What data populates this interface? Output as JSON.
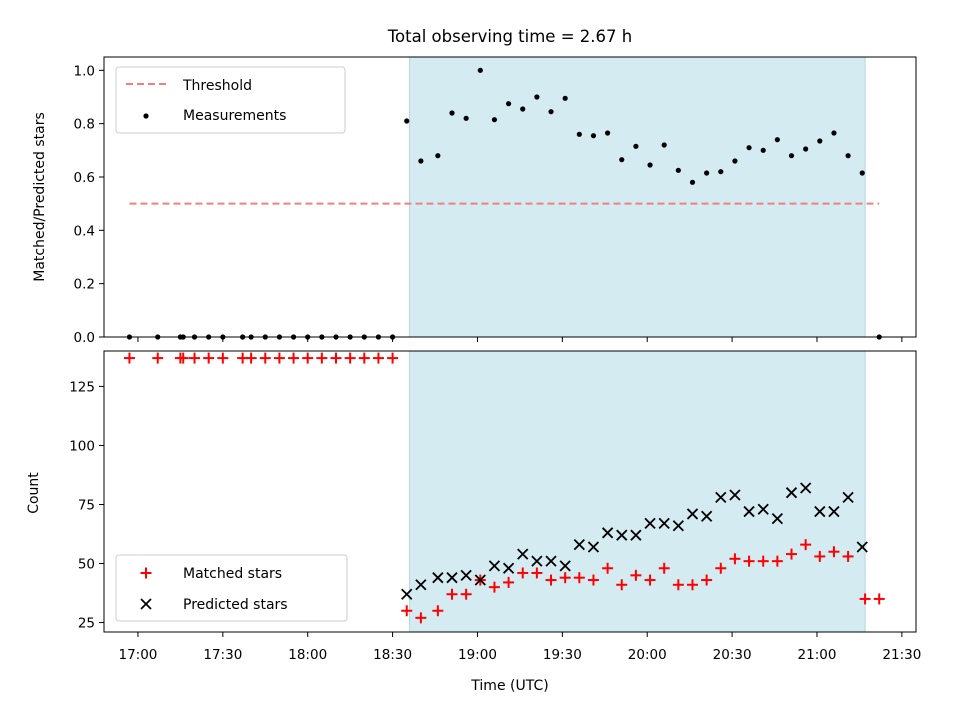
{
  "chart_data": [
    {
      "type": "scatter",
      "title": "Total observing time = 2.67 h",
      "xlabel": "",
      "ylabel": "Matched/Predicted stars",
      "xlim": [
        "16:48",
        "21:35"
      ],
      "ylim": [
        0,
        1.05
      ],
      "y_ticks": [
        "0.0",
        "0.2",
        "0.4",
        "0.6",
        "0.8",
        "1.0"
      ],
      "grid": false,
      "legend_position": "top-left",
      "shaded_interval": {
        "start": "18:36",
        "end": "21:17",
        "color": "#d4ebf2"
      },
      "threshold": {
        "name": "Threshold",
        "value": 0.5,
        "x_start": "16:57",
        "x_end": "21:22",
        "color": "#f08080"
      },
      "series": [
        {
          "name": "Measurements",
          "color": "#000000",
          "marker": "dot",
          "points": [
            [
              "16:57",
              0
            ],
            [
              "17:07",
              0
            ],
            [
              "17:15",
              0
            ],
            [
              "17:16",
              0
            ],
            [
              "17:20",
              0
            ],
            [
              "17:25",
              0
            ],
            [
              "17:30",
              0
            ],
            [
              "17:37",
              0
            ],
            [
              "17:40",
              0
            ],
            [
              "17:45",
              0
            ],
            [
              "17:50",
              0
            ],
            [
              "17:55",
              0
            ],
            [
              "18:00",
              0
            ],
            [
              "18:05",
              0
            ],
            [
              "18:10",
              0
            ],
            [
              "18:15",
              0
            ],
            [
              "18:20",
              0
            ],
            [
              "18:25",
              0
            ],
            [
              "18:30",
              0
            ],
            [
              "18:35",
              0.81
            ],
            [
              "18:40",
              0.66
            ],
            [
              "18:46",
              0.68
            ],
            [
              "18:51",
              0.84
            ],
            [
              "18:56",
              0.82
            ],
            [
              "19:01",
              1.0
            ],
            [
              "19:06",
              0.815
            ],
            [
              "19:11",
              0.875
            ],
            [
              "19:16",
              0.855
            ],
            [
              "19:21",
              0.9
            ],
            [
              "19:26",
              0.845
            ],
            [
              "19:31",
              0.895
            ],
            [
              "19:36",
              0.76
            ],
            [
              "19:41",
              0.755
            ],
            [
              "19:46",
              0.765
            ],
            [
              "19:51",
              0.665
            ],
            [
              "19:56",
              0.715
            ],
            [
              "20:01",
              0.645
            ],
            [
              "20:06",
              0.72
            ],
            [
              "20:11",
              0.625
            ],
            [
              "20:16",
              0.58
            ],
            [
              "20:21",
              0.615
            ],
            [
              "20:26",
              0.62
            ],
            [
              "20:31",
              0.66
            ],
            [
              "20:36",
              0.71
            ],
            [
              "20:41",
              0.7
            ],
            [
              "20:46",
              0.74
            ],
            [
              "20:51",
              0.68
            ],
            [
              "20:56",
              0.705
            ],
            [
              "21:01",
              0.735
            ],
            [
              "21:06",
              0.765
            ],
            [
              "21:11",
              0.68
            ],
            [
              "21:16",
              0.615
            ],
            [
              "21:22",
              0
            ]
          ]
        }
      ]
    },
    {
      "type": "scatter",
      "title": "",
      "xlabel": "Time (UTC)",
      "ylabel": "Count",
      "x_ticks": [
        "17:00",
        "17:30",
        "18:00",
        "18:30",
        "19:00",
        "19:30",
        "20:00",
        "20:30",
        "21:00",
        "21:30"
      ],
      "xlim": [
        "16:48",
        "21:35"
      ],
      "ylim": [
        21,
        140
      ],
      "y_ticks": [
        "25",
        "50",
        "75",
        "100",
        "125"
      ],
      "grid": false,
      "legend_position": "bottom-left",
      "shaded_interval": {
        "start": "18:36",
        "end": "21:17",
        "color": "#d4ebf2"
      },
      "series": [
        {
          "name": "Matched stars",
          "color": "#ff0000",
          "marker": "plus",
          "points": [
            [
              "16:57",
              137
            ],
            [
              "17:07",
              137
            ],
            [
              "17:15",
              137
            ],
            [
              "17:16",
              137
            ],
            [
              "17:20",
              137
            ],
            [
              "17:25",
              137
            ],
            [
              "17:30",
              137
            ],
            [
              "17:37",
              137
            ],
            [
              "17:40",
              137
            ],
            [
              "17:45",
              137
            ],
            [
              "17:50",
              137
            ],
            [
              "17:55",
              137
            ],
            [
              "18:00",
              137
            ],
            [
              "18:05",
              137
            ],
            [
              "18:10",
              137
            ],
            [
              "18:15",
              137
            ],
            [
              "18:20",
              137
            ],
            [
              "18:25",
              137
            ],
            [
              "18:30",
              137
            ],
            [
              "18:35",
              30
            ],
            [
              "18:40",
              27
            ],
            [
              "18:46",
              30
            ],
            [
              "18:51",
              37
            ],
            [
              "18:56",
              37
            ],
            [
              "19:01",
              43
            ],
            [
              "19:06",
              40
            ],
            [
              "19:11",
              42
            ],
            [
              "19:16",
              46
            ],
            [
              "19:21",
              46
            ],
            [
              "19:26",
              43
            ],
            [
              "19:31",
              44
            ],
            [
              "19:36",
              44
            ],
            [
              "19:41",
              43
            ],
            [
              "19:46",
              48
            ],
            [
              "19:51",
              41
            ],
            [
              "19:56",
              45
            ],
            [
              "20:01",
              43
            ],
            [
              "20:06",
              48
            ],
            [
              "20:11",
              41
            ],
            [
              "20:16",
              41
            ],
            [
              "20:21",
              43
            ],
            [
              "20:26",
              48
            ],
            [
              "20:31",
              52
            ],
            [
              "20:36",
              51
            ],
            [
              "20:41",
              51
            ],
            [
              "20:46",
              51
            ],
            [
              "20:51",
              54
            ],
            [
              "20:56",
              58
            ],
            [
              "21:01",
              53
            ],
            [
              "21:06",
              55
            ],
            [
              "21:11",
              53
            ],
            [
              "21:17",
              35
            ],
            [
              "21:22",
              35
            ]
          ]
        },
        {
          "name": "Predicted stars",
          "color": "#000000",
          "marker": "x",
          "points": [
            [
              "18:35",
              37
            ],
            [
              "18:40",
              41
            ],
            [
              "18:46",
              44
            ],
            [
              "18:51",
              44
            ],
            [
              "18:56",
              45
            ],
            [
              "19:01",
              43
            ],
            [
              "19:06",
              49
            ],
            [
              "19:11",
              48
            ],
            [
              "19:16",
              54
            ],
            [
              "19:21",
              51
            ],
            [
              "19:26",
              51
            ],
            [
              "19:31",
              49
            ],
            [
              "19:36",
              58
            ],
            [
              "19:41",
              57
            ],
            [
              "19:46",
              63
            ],
            [
              "19:51",
              62
            ],
            [
              "19:56",
              62
            ],
            [
              "20:01",
              67
            ],
            [
              "20:06",
              67
            ],
            [
              "20:11",
              66
            ],
            [
              "20:16",
              71
            ],
            [
              "20:21",
              70
            ],
            [
              "20:26",
              78
            ],
            [
              "20:31",
              79
            ],
            [
              "20:36",
              72
            ],
            [
              "20:41",
              73
            ],
            [
              "20:46",
              69
            ],
            [
              "20:51",
              80
            ],
            [
              "20:56",
              82
            ],
            [
              "21:01",
              72
            ],
            [
              "21:06",
              72
            ],
            [
              "21:11",
              78
            ],
            [
              "21:16",
              57
            ]
          ]
        }
      ]
    }
  ]
}
